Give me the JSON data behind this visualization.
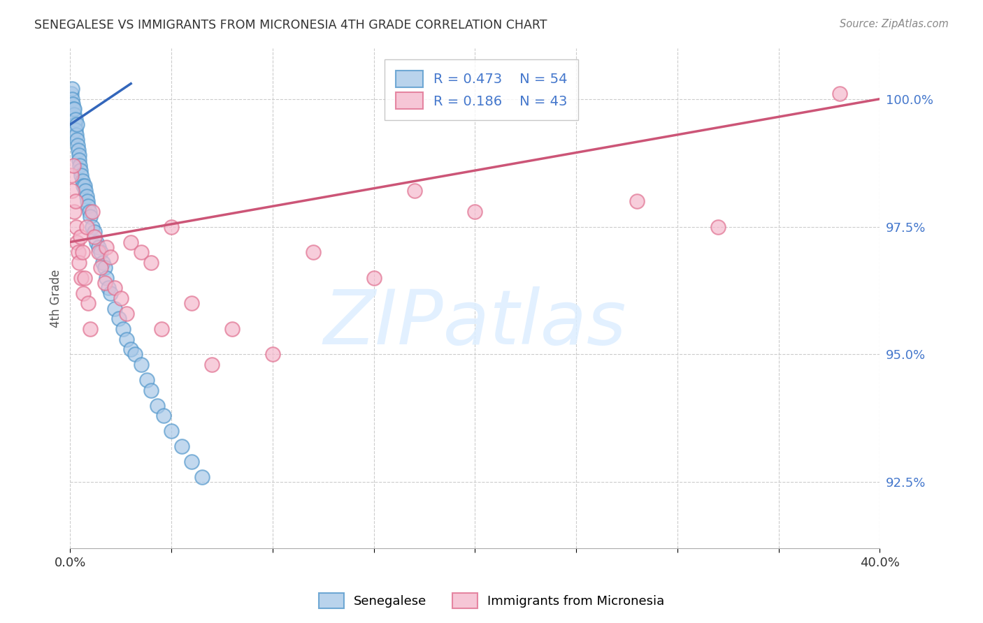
{
  "title": "SENEGALESE VS IMMIGRANTS FROM MICRONESIA 4TH GRADE CORRELATION CHART",
  "source": "Source: ZipAtlas.com",
  "ylabel": "4th Grade",
  "ytick_values": [
    92.5,
    95.0,
    97.5,
    100.0
  ],
  "xlim": [
    0.0,
    40.0
  ],
  "ylim": [
    91.2,
    101.0
  ],
  "legend_label1": "Senegalese",
  "legend_label2": "Immigrants from Micronesia",
  "R1": 0.473,
  "N1": 54,
  "R2": 0.186,
  "N2": 43,
  "color1": "#a8c8e8",
  "color2": "#f4b8cc",
  "edge_color1": "#5599cc",
  "edge_color2": "#e07090",
  "line_color1": "#3366bb",
  "line_color2": "#cc5577",
  "background_color": "#ffffff",
  "grid_color": "#cccccc",
  "blue_x": [
    0.05,
    0.08,
    0.1,
    0.12,
    0.15,
    0.18,
    0.2,
    0.22,
    0.25,
    0.28,
    0.3,
    0.32,
    0.35,
    0.38,
    0.4,
    0.42,
    0.45,
    0.48,
    0.5,
    0.55,
    0.6,
    0.65,
    0.7,
    0.75,
    0.8,
    0.85,
    0.9,
    0.95,
    1.0,
    1.1,
    1.2,
    1.3,
    1.4,
    1.5,
    1.6,
    1.7,
    1.8,
    1.9,
    2.0,
    2.2,
    2.4,
    2.6,
    2.8,
    3.0,
    3.2,
    3.5,
    3.8,
    4.0,
    4.3,
    4.6,
    5.0,
    5.5,
    6.0,
    6.5
  ],
  "blue_y": [
    100.1,
    100.2,
    100.0,
    99.9,
    99.8,
    99.7,
    99.8,
    99.5,
    99.6,
    99.4,
    99.3,
    99.5,
    99.2,
    99.1,
    99.0,
    98.9,
    98.8,
    98.7,
    98.6,
    98.5,
    98.4,
    98.3,
    98.3,
    98.2,
    98.1,
    98.0,
    97.9,
    97.8,
    97.7,
    97.5,
    97.4,
    97.2,
    97.1,
    97.0,
    96.8,
    96.7,
    96.5,
    96.3,
    96.2,
    95.9,
    95.7,
    95.5,
    95.3,
    95.1,
    95.0,
    94.8,
    94.5,
    94.3,
    94.0,
    93.8,
    93.5,
    93.2,
    92.9,
    92.6
  ],
  "pink_x": [
    0.05,
    0.1,
    0.15,
    0.2,
    0.25,
    0.3,
    0.35,
    0.4,
    0.45,
    0.5,
    0.55,
    0.6,
    0.65,
    0.7,
    0.8,
    0.9,
    1.0,
    1.1,
    1.2,
    1.4,
    1.5,
    1.7,
    1.8,
    2.0,
    2.2,
    2.5,
    2.8,
    3.0,
    3.5,
    4.0,
    4.5,
    5.0,
    6.0,
    7.0,
    8.0,
    10.0,
    12.0,
    15.0,
    17.0,
    20.0,
    28.0,
    32.0,
    38.0
  ],
  "pink_y": [
    98.5,
    98.2,
    98.7,
    97.8,
    98.0,
    97.5,
    97.2,
    97.0,
    96.8,
    97.3,
    96.5,
    97.0,
    96.2,
    96.5,
    97.5,
    96.0,
    95.5,
    97.8,
    97.3,
    97.0,
    96.7,
    96.4,
    97.1,
    96.9,
    96.3,
    96.1,
    95.8,
    97.2,
    97.0,
    96.8,
    95.5,
    97.5,
    96.0,
    94.8,
    95.5,
    95.0,
    97.0,
    96.5,
    98.2,
    97.8,
    98.0,
    97.5,
    100.1
  ],
  "blue_line_x0": 0.0,
  "blue_line_y0": 99.5,
  "blue_line_x1": 3.0,
  "blue_line_y1": 100.3,
  "pink_line_x0": 0.0,
  "pink_line_y0": 97.2,
  "pink_line_x1": 40.0,
  "pink_line_y1": 100.0
}
